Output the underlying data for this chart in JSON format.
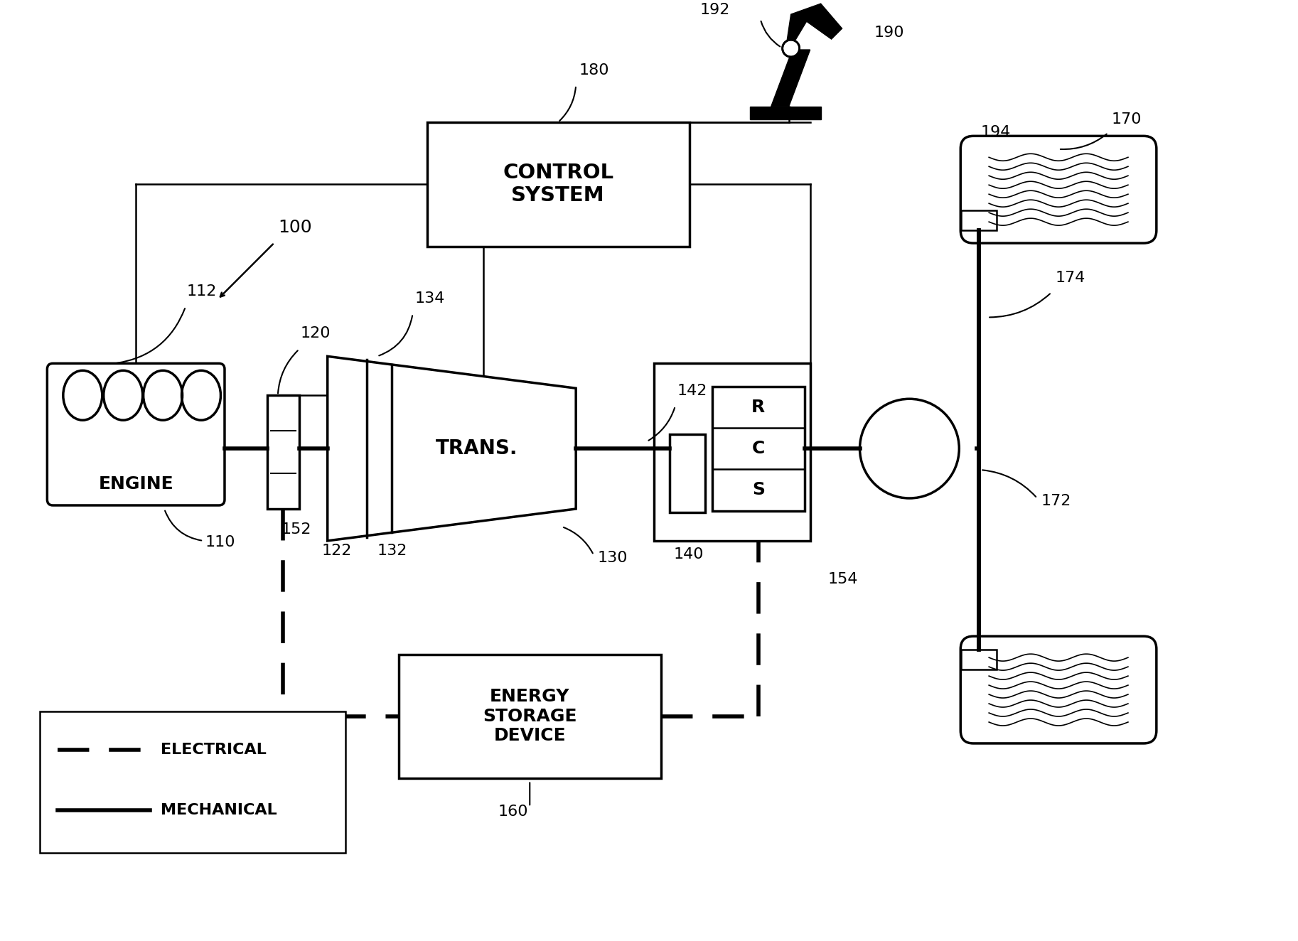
{
  "bg_color": "#ffffff",
  "labels": {
    "engine": "ENGINE",
    "control_system": "CONTROL\nSYSTEM",
    "trans": "TRANS.",
    "energy_storage": "ENERGY\nSTORAGE\nDEVICE",
    "R": "R",
    "C": "C",
    "S": "S"
  },
  "ref_numbers": {
    "n100": "100",
    "n110": "110",
    "n112": "112",
    "n120": "120",
    "n122": "122",
    "n130": "130",
    "n132": "132",
    "n134": "134",
    "n140": "140",
    "n142": "142",
    "n152": "152",
    "n154": "154",
    "n160": "160",
    "n170": "170",
    "n172": "172",
    "n174": "174",
    "n180": "180",
    "n190": "190",
    "n192": "192",
    "n194": "194"
  },
  "legend_electrical": "ELECTRICAL",
  "legend_mechanical": "MECHANICAL"
}
